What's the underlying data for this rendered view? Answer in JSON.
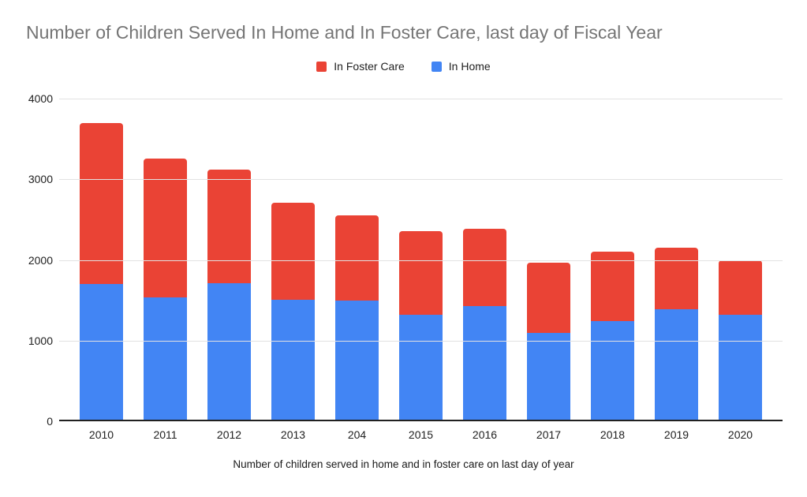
{
  "chart_data": {
    "type": "bar",
    "stacked": true,
    "title": "Number of Children Served In Home and In Foster Care, last day of Fiscal Year",
    "xlabel": "Number of children served in home and in foster care on last day of year",
    "ylabel": "",
    "categories": [
      "2010",
      "2011",
      "2012",
      "2013",
      "204",
      "2015",
      "2016",
      "2017",
      "2018",
      "2019",
      "2020"
    ],
    "series": [
      {
        "name": "In Home",
        "color": "#4285F4",
        "values": [
          1690,
          1520,
          1700,
          1490,
          1480,
          1310,
          1420,
          1080,
          1230,
          1380,
          1310
        ]
      },
      {
        "name": "In Foster Care",
        "color": "#EA4335",
        "values": [
          2010,
          1730,
          1420,
          1210,
          1070,
          1040,
          960,
          880,
          860,
          760,
          680
        ]
      }
    ],
    "stacked_totals": [
      3700,
      3250,
      3120,
      2700,
      2550,
      2350,
      2380,
      1960,
      2090,
      2140,
      1990
    ],
    "ylim": [
      0,
      4000
    ],
    "yticks": [
      "0",
      "1000",
      "2000",
      "3000",
      "4000"
    ],
    "grid": true,
    "legend_position": "top",
    "legend": [
      {
        "label": "In Foster Care",
        "color": "#EA4335"
      },
      {
        "label": "In Home",
        "color": "#4285F4"
      }
    ]
  },
  "colors": {
    "title_text": "#757575",
    "tick_text": "#212121",
    "gridline": "#e2e2e2",
    "axis_line": "#212121",
    "background": "#ffffff"
  }
}
